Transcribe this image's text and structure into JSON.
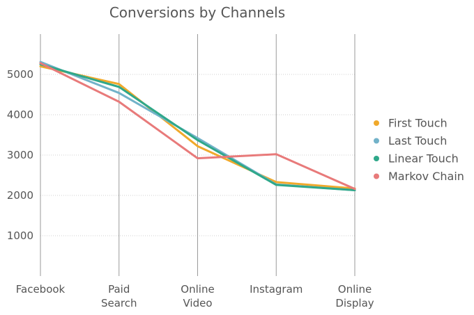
{
  "chart_data": {
    "type": "line",
    "title": "Conversions by Channels",
    "categories": [
      "Facebook",
      "Paid Search",
      "Online Video",
      "Instagram",
      "Online Display"
    ],
    "category_label_lines": [
      [
        "Facebook"
      ],
      [
        "Paid",
        "Search"
      ],
      [
        "Online",
        "Video"
      ],
      [
        "Instagram"
      ],
      [
        "Online",
        "Display"
      ]
    ],
    "ylim": [
      0,
      6000
    ],
    "yticks": [
      1000,
      2000,
      3000,
      4000,
      5000
    ],
    "grid": true,
    "legend_position": "right",
    "series": [
      {
        "name": "First Touch",
        "color": "#f0a92b",
        "values": [
          5200,
          4760,
          3220,
          2330,
          2170
        ]
      },
      {
        "name": "Last Touch",
        "color": "#72b2c9",
        "values": [
          5310,
          4540,
          3420,
          2270,
          2130
        ]
      },
      {
        "name": "Linear Touch",
        "color": "#2fa88a",
        "values": [
          5250,
          4690,
          3370,
          2260,
          2130
        ]
      },
      {
        "name": "Markov Chain",
        "color": "#e87a7a",
        "values": [
          5280,
          4320,
          2920,
          3020,
          2160
        ]
      }
    ]
  }
}
